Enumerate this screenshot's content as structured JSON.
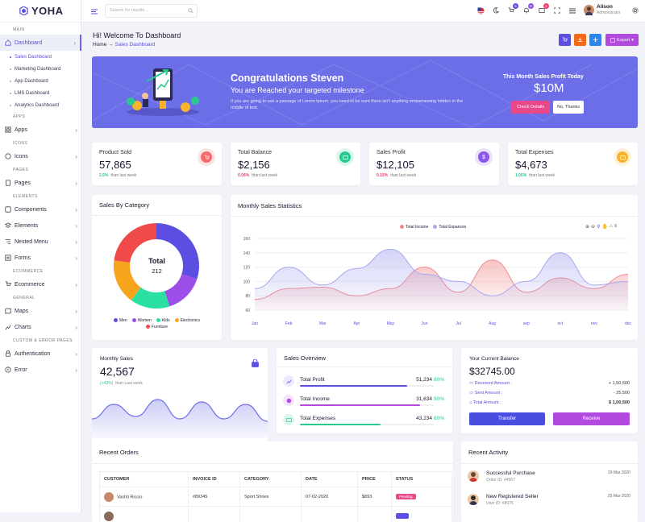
{
  "app": {
    "logo_text": "YOHA"
  },
  "sidebar": {
    "sections": {
      "main": "MAIN",
      "apps": "APPS",
      "icons": "ICONS",
      "pages": "PAGES",
      "elements": "ELEMENTS",
      "ecommerce": "ECOMMERCE",
      "general": "GENERAL",
      "custom": "CUSTOM & ERROR PAGES"
    },
    "dashboard": "Dashboard",
    "sub_items": [
      "Sales Dashboard",
      "Marketing Dashboard",
      "App Dashboard",
      "LMS Dashboard",
      "Analytics Dashboard"
    ],
    "apps": "Apps",
    "icons": "Icons",
    "pages": "Pages",
    "components": "Components",
    "elements": "Elements",
    "nested_menu": "Nested Menu",
    "forms": "Forms",
    "ecommerce": "Ecommerce",
    "maps": "Maps",
    "charts": "Charts",
    "authentication": "Authentication",
    "error": "Error"
  },
  "topbar": {
    "search_placeholder": "Search for results...",
    "cart_badge": "5",
    "notif_badge": "5",
    "msg_badge": "4",
    "user_name": "Alison",
    "user_role": "Administrator"
  },
  "page": {
    "welcome": "Hi! Welcome To Dashboard",
    "crumb_home": "Home",
    "crumb_sep": "→",
    "crumb_current": "Sales Dashboard",
    "export_label": "Export"
  },
  "banner": {
    "title": "Congratulations Steven",
    "subtitle": "You are Reached your targeted milestone",
    "text": "If you are going to use a passage of Lorem Ipsum, you need to be sure there isn't anything embarrassing hidden in the middle of text.",
    "profit_label": "This Month Sales Profit Today",
    "profit_value": "$10M",
    "details_btn": "Check Details",
    "nothanks_btn": "No, Thanks"
  },
  "stats": [
    {
      "label": "Product Sold",
      "value": "57,865",
      "pct": "2.6%",
      "note": "than last week",
      "pct_color": "#2ac98f",
      "icon": "cart-icon",
      "color": "#f56a6a"
    },
    {
      "label": "Total Balance",
      "value": "$2,156",
      "pct": "0.06%",
      "note": "than last week",
      "pct_color": "#f0416a",
      "icon": "wallet-icon",
      "color": "#2ac98f"
    },
    {
      "label": "Sales Profit",
      "value": "$12,105",
      "pct": "0.15%",
      "note": "than last week",
      "pct_color": "#f0416a",
      "icon": "dollar-icon",
      "color": "#8b57e8"
    },
    {
      "label": "Total Expenses",
      "value": "$4,673",
      "pct": "1.05%",
      "note": "than last week",
      "pct_color": "#2ac98f",
      "icon": "expense-icon",
      "color": "#f7b32b"
    }
  ],
  "sales_by_category": {
    "title": "Sales By Category",
    "center_label": "Total",
    "center_value": "212"
  },
  "monthly_stats": {
    "title": "Monthly Sales Statistics"
  },
  "monthly_sales": {
    "title": "Monthly Sales",
    "value": "42,567",
    "pct": "(+43%)",
    "note": "than Last week"
  },
  "sales_overview": {
    "title": "Sales Overview",
    "rows": [
      {
        "label": "Total Profit",
        "value": "51,234",
        "pct": "80%",
        "color": "#5b4ee0",
        "icon": "chart-icon"
      },
      {
        "label": "Total Income",
        "value": "31,634",
        "pct": "90%",
        "color": "#b34ae0",
        "icon": "coin-icon"
      },
      {
        "label": "Total Expenses",
        "value": "43,234",
        "pct": "60%",
        "color": "#2ac98f",
        "icon": "receipt-icon"
      }
    ]
  },
  "balance": {
    "title": "Your Current Balance",
    "value": "$32745.00",
    "rows": [
      {
        "label": "Received Amount",
        "sep": ":",
        "value": "+ 1,50,500"
      },
      {
        "label": "Sent Amount",
        "sep": ":",
        "value": "- 25,500"
      },
      {
        "label": "Total Amount",
        "sep": ":",
        "value": "$ 1,00,500"
      }
    ],
    "transfer_btn": "Transfer",
    "receive_btn": "Receive"
  },
  "orders": {
    "title": "Recent Orders",
    "headers": [
      "CUSTOMER",
      "INVOICE ID",
      "CATEGORY",
      "DATE",
      "PRICE",
      "STATUS"
    ],
    "rows": [
      {
        "customer": "Vashti Riccio",
        "invoice": "#89345",
        "category": "Sport Shoes",
        "date": "07-02-2020",
        "price": "$893",
        "status": "Pending"
      }
    ]
  },
  "activity": {
    "title": "Recent Activity",
    "items": [
      {
        "title": "Successful Purchase",
        "sub": "Order ID: #4567",
        "date": "29 Mar 2020"
      },
      {
        "title": "New Registered Seller",
        "sub": "User ID: #8976",
        "date": "25 Mar 2020"
      }
    ]
  },
  "chart_data": [
    {
      "type": "pie",
      "title": "Sales By Category",
      "categories": [
        "Men",
        "Women",
        "Kids",
        "Electronics",
        "Furniture"
      ],
      "values": [
        30,
        15,
        15,
        17,
        23
      ],
      "colors": [
        "#5b4ee0",
        "#9b4ee8",
        "#2ae0a0",
        "#f7a51f",
        "#f04a4a"
      ],
      "center_label": "Total",
      "center_value": "212"
    },
    {
      "type": "area",
      "title": "Monthly Sales Statistics",
      "categories": [
        "Jan",
        "Feb",
        "Mar",
        "Apr",
        "May",
        "Jun",
        "Jul",
        "Aug",
        "sep",
        "oct",
        "nov",
        "dec"
      ],
      "yticks": [
        60,
        80,
        100,
        120,
        140,
        160
      ],
      "ylim": [
        60,
        160
      ],
      "legend": "top-center",
      "series": [
        {
          "name": "Total Income",
          "color": "#f08a8a",
          "values": [
            75,
            90,
            92,
            80,
            90,
            120,
            85,
            130,
            85,
            105,
            90,
            110
          ]
        },
        {
          "name": "Total Expances",
          "color": "#a8a8f0",
          "values": [
            90,
            120,
            95,
            118,
            145,
            110,
            100,
            80,
            100,
            140,
            95,
            100
          ]
        }
      ]
    },
    {
      "type": "area",
      "title": "Monthly Sales",
      "values": [
        40,
        70,
        45,
        80,
        40,
        75,
        40,
        70,
        35
      ],
      "color": "#6c6ee8"
    }
  ]
}
